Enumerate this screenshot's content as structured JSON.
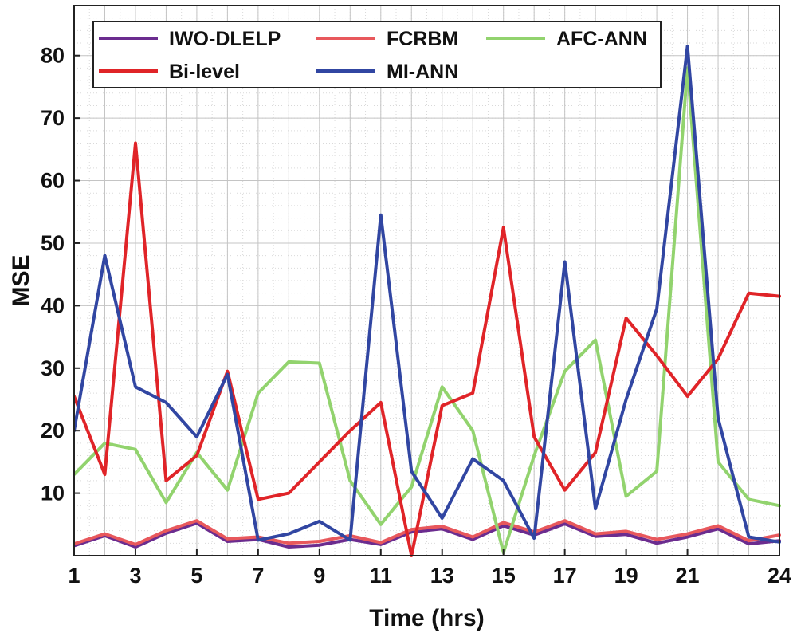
{
  "chart_data": {
    "type": "line",
    "title": "",
    "xlabel": "Time (hrs)",
    "ylabel": "MSE",
    "xlim": [
      1,
      24
    ],
    "ylim": [
      0,
      88
    ],
    "grid": true,
    "minor_grid": true,
    "legend_position": "top",
    "x_ticks": [
      1,
      3,
      5,
      7,
      9,
      11,
      13,
      15,
      17,
      19,
      21,
      24
    ],
    "y_ticks": [
      10,
      20,
      30,
      40,
      50,
      60,
      70,
      80
    ],
    "x": [
      1,
      2,
      3,
      4,
      5,
      6,
      7,
      8,
      9,
      10,
      11,
      12,
      13,
      14,
      15,
      16,
      17,
      18,
      19,
      20,
      21,
      22,
      23,
      24
    ],
    "series": [
      {
        "name": "IWO-DLELP",
        "color": "#6b2c8f",
        "values": [
          1.6,
          3.2,
          1.4,
          3.6,
          5.2,
          2.3,
          2.6,
          1.4,
          1.7,
          2.6,
          1.8,
          3.8,
          4.3,
          2.6,
          4.8,
          3.3,
          5.1,
          3.1,
          3.4,
          2.0,
          3.0,
          4.3,
          1.9,
          2.4
        ]
      },
      {
        "name": "FCRBM",
        "color": "#e8585c",
        "values": [
          1.9,
          3.5,
          1.8,
          4.0,
          5.6,
          2.7,
          3.0,
          2.0,
          2.3,
          3.2,
          2.1,
          4.2,
          4.7,
          3.0,
          5.3,
          3.8,
          5.6,
          3.5,
          3.9,
          2.6,
          3.5,
          4.8,
          2.4,
          3.3
        ]
      },
      {
        "name": "AFC-ANN",
        "color": "#92d36e",
        "values": [
          13,
          18,
          17,
          8.5,
          16.5,
          10.5,
          26,
          31,
          30.8,
          12,
          5,
          11,
          27,
          20,
          0.5,
          16,
          29.5,
          34.5,
          9.5,
          13.5,
          78,
          15,
          9,
          8
        ]
      },
      {
        "name": "Bi-level",
        "color": "#e02428",
        "values": [
          25.5,
          13,
          66,
          12,
          16,
          29.5,
          9,
          10,
          15,
          20,
          24.5,
          0,
          24,
          26,
          52.5,
          19,
          10.5,
          16.5,
          38,
          32,
          25.5,
          31.5,
          42,
          41.5
        ]
      },
      {
        "name": "MI-ANN",
        "color": "#3146a2",
        "values": [
          20,
          48,
          27,
          24.5,
          19,
          29,
          2.5,
          3.5,
          5.5,
          2.5,
          54.5,
          13.5,
          6,
          15.5,
          12,
          2.8,
          47,
          7.5,
          25,
          39.5,
          81.5,
          22,
          3,
          2.2
        ]
      }
    ]
  }
}
